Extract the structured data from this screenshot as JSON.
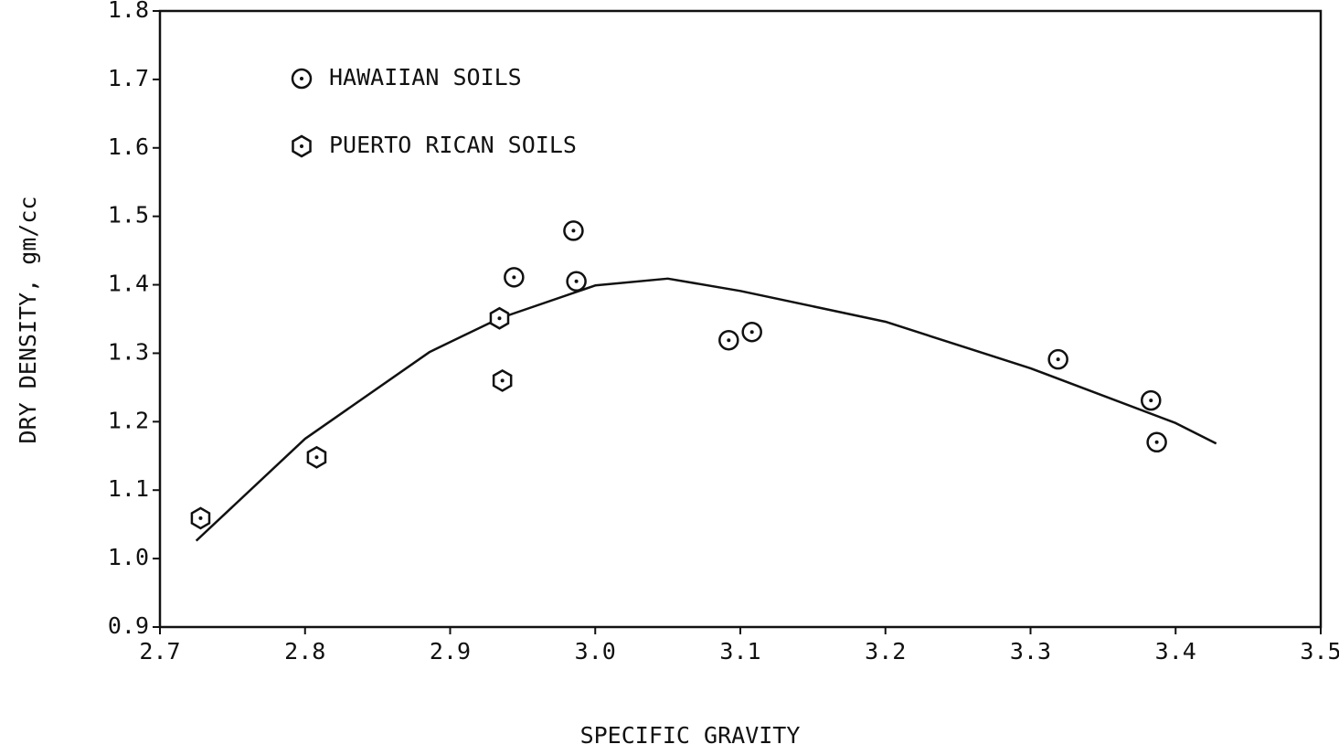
{
  "chart_data": {
    "type": "scatter",
    "xlabel": "SPECIFIC GRAVITY",
    "ylabel": "DRY DENSITY, gm/cc",
    "xlim": [
      2.7,
      3.5
    ],
    "ylim": [
      0.9,
      1.8
    ],
    "xticks": [
      2.7,
      2.8,
      2.9,
      {
        "value": 3,
        "label": "3.0"
      },
      3.1,
      3.2,
      3.3,
      3.4,
      3.5
    ],
    "yticks": [
      0.9,
      {
        "value": 1,
        "label": "1.0"
      },
      1.1,
      1.2,
      1.3,
      1.4,
      1.5,
      1.6,
      1.7,
      1.8
    ],
    "series": [
      {
        "name": "HAWAIIAN SOILS",
        "marker": "circle",
        "color": "#111111",
        "x": [
          2.985,
          2.944,
          2.987,
          3.092,
          3.108,
          3.319,
          3.383,
          3.387
        ],
        "values": [
          1.479,
          1.411,
          1.405,
          1.319,
          1.331,
          1.291,
          1.231,
          1.17
        ]
      },
      {
        "name": "PUERTO RICAN SOILS",
        "marker": "hexagon",
        "color": "#111111",
        "x": [
          2.728,
          2.808,
          2.934,
          2.936
        ],
        "values": [
          1.059,
          1.148,
          1.351,
          1.26
        ]
      }
    ],
    "curve": {
      "x": [
        2.725,
        2.8,
        2.886,
        2.934,
        3.0,
        3.05,
        3.1,
        3.2,
        3.3,
        3.4,
        3.428
      ],
      "values": [
        1.026,
        1.175,
        1.302,
        1.351,
        1.399,
        1.409,
        1.391,
        1.346,
        1.278,
        1.198,
        1.168
      ]
    }
  }
}
